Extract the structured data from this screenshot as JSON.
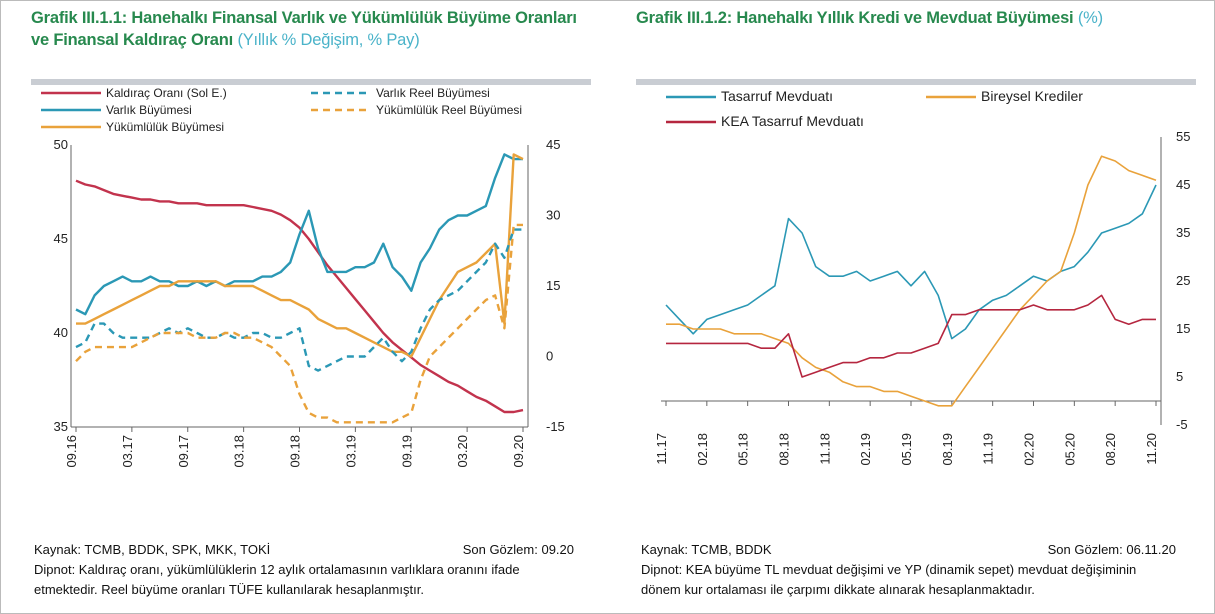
{
  "chart_data": [
    {
      "type": "line",
      "title": "Grafik III.1.1: Hanehalkı Finansal Varlık ve Yükümlülük Büyüme Oranları ve Finansal Kaldıraç Oranı",
      "subtitle": "(Yıllık % Değişim, % Pay)",
      "categories": [
        "09.16",
        null,
        null,
        null,
        null,
        null,
        "03.17",
        null,
        null,
        null,
        null,
        null,
        "09.17",
        null,
        null,
        null,
        null,
        null,
        "03.18",
        null,
        null,
        null,
        null,
        null,
        "09.18",
        null,
        null,
        null,
        null,
        null,
        "03.19",
        null,
        null,
        null,
        null,
        null,
        "09.19",
        null,
        null,
        null,
        null,
        null,
        "03.20",
        null,
        null,
        null,
        null,
        null,
        "09.20"
      ],
      "ylim": [
        35,
        50
      ],
      "yticks": [
        35,
        40,
        45,
        50
      ],
      "y2lim": [
        -15,
        45
      ],
      "y2ticks": [
        -15,
        0,
        15,
        30,
        45
      ],
      "series": [
        {
          "name": "Kaldıraç Oranı (Sol E.)",
          "color": "#c2334d",
          "dash": false,
          "values": [
            48.1,
            47.9,
            47.8,
            47.6,
            47.4,
            47.3,
            47.2,
            47.1,
            47.1,
            47.0,
            47.0,
            46.9,
            46.9,
            46.9,
            46.8,
            46.8,
            46.8,
            46.8,
            46.8,
            46.7,
            46.6,
            46.5,
            46.3,
            46.0,
            45.6,
            45.0,
            44.3,
            43.6,
            43.0,
            42.4,
            41.8,
            41.2,
            40.6,
            40.0,
            39.5,
            39.1,
            38.7,
            38.3,
            38.0,
            37.7,
            37.4,
            37.2,
            36.9,
            36.6,
            36.4,
            36.1,
            35.8,
            35.8,
            35.9
          ]
        },
        {
          "name": "Varlık Büyümesi",
          "color": "#2b98b5",
          "dash": false,
          "axis": "y2",
          "values": [
            10,
            9,
            13,
            15,
            16,
            17,
            16,
            16,
            17,
            16,
            16,
            15,
            15,
            16,
            15,
            16,
            15,
            16,
            16,
            16,
            17,
            17,
            18,
            20,
            26,
            31,
            23,
            18,
            18,
            18,
            19,
            19,
            20,
            24,
            19,
            17,
            14,
            20,
            23,
            27,
            29,
            30,
            30,
            31,
            32,
            38,
            43,
            42,
            42
          ]
        },
        {
          "name": "Yükümlülük Büyümesi",
          "color": "#e9a23b",
          "dash": false,
          "axis": "y2",
          "values": [
            7,
            7,
            8,
            9,
            10,
            11,
            12,
            13,
            14,
            15,
            15,
            16,
            16,
            16,
            16,
            16,
            15,
            15,
            15,
            15,
            14,
            13,
            12,
            12,
            11,
            10,
            8,
            7,
            6,
            6,
            5,
            4,
            3,
            2,
            1,
            1,
            0,
            4,
            8,
            12,
            15,
            18,
            19,
            20,
            22,
            24,
            7,
            43,
            42
          ]
        },
        {
          "name": "Varlık Reel Büyümesi",
          "color": "#2b98b5",
          "dash": true,
          "axis": "y2",
          "values": [
            2,
            3,
            7,
            7,
            5,
            4,
            4,
            4,
            4,
            5,
            6,
            5,
            6,
            5,
            4,
            4,
            5,
            4,
            4,
            5,
            5,
            4,
            4,
            5,
            6,
            -2,
            -3,
            -2,
            -1,
            0,
            0,
            0,
            2,
            4,
            1,
            -1,
            1,
            6,
            10,
            12,
            13,
            14,
            16,
            18,
            20,
            24,
            21,
            27,
            27
          ]
        },
        {
          "name": "Yükümlülük Reel Büyümesi",
          "color": "#e9a23b",
          "dash": true,
          "axis": "y2",
          "values": [
            -1,
            1,
            2,
            2,
            2,
            2,
            2,
            3,
            4,
            5,
            5,
            5,
            5,
            4,
            4,
            4,
            5,
            5,
            4,
            4,
            3,
            2,
            0,
            -2,
            -8,
            -12,
            -13,
            -13,
            -14,
            -14,
            -14,
            -14,
            -14,
            -14,
            -14,
            -13,
            -12,
            -5,
            0,
            2,
            4,
            6,
            8,
            10,
            12,
            13,
            6,
            28,
            28
          ]
        }
      ],
      "source": "Kaynak: TCMB, BDDK, SPK, MKK, TOKİ",
      "last_observation": "Son Gözlem: 09.20",
      "footnote": "Dipnot: Kaldıraç oranı, yükümlülüklerin 12 aylık ortalamasının varlıklara oranını ifade etmektedir. Reel büyüme oranları TÜFE kullanılarak hesaplanmıştır."
    },
    {
      "type": "line",
      "title": "Grafik III.1.2: Hanehalkı Yıllık Kredi ve Mevduat Büyümesi",
      "subtitle": "(%)",
      "categories": [
        "11.17",
        null,
        null,
        "02.18",
        null,
        null,
        "05.18",
        null,
        null,
        "08.18",
        null,
        null,
        "11.18",
        null,
        null,
        "02.19",
        null,
        null,
        "05.19",
        null,
        null,
        "08.19",
        null,
        null,
        "11.19",
        null,
        null,
        "02.20",
        null,
        null,
        "05.20",
        null,
        null,
        "08.20",
        null,
        null,
        "11.20"
      ],
      "ylim": [
        -5,
        55
      ],
      "yticks": [
        -5,
        5,
        15,
        25,
        35,
        45,
        55
      ],
      "y_axis_side": "right",
      "series": [
        {
          "name": "Tasarruf Mevduatı",
          "color": "#2b98b5",
          "dash": false,
          "values": [
            20,
            17,
            14,
            17,
            18,
            19,
            20,
            22,
            24,
            38,
            35,
            28,
            26,
            26,
            27,
            25,
            26,
            27,
            24,
            27,
            22,
            13,
            15,
            19,
            21,
            22,
            24,
            26,
            25,
            27,
            28,
            31,
            35,
            36,
            37,
            39,
            45
          ]
        },
        {
          "name": "Bireysel Krediler",
          "color": "#e9a23b",
          "dash": false,
          "values": [
            16,
            16,
            15,
            15,
            15,
            14,
            14,
            14,
            13,
            12,
            9,
            7,
            6,
            4,
            3,
            3,
            2,
            2,
            1,
            0,
            -1,
            -1,
            3,
            7,
            11,
            15,
            19,
            22,
            25,
            27,
            35,
            45,
            51,
            50,
            48,
            47,
            46
          ]
        },
        {
          "name": "KEA Tasarruf Mevduatı",
          "color": "#b5263f",
          "dash": false,
          "values": [
            12,
            12,
            12,
            12,
            12,
            12,
            12,
            11,
            11,
            14,
            5,
            6,
            7,
            8,
            8,
            9,
            9,
            10,
            10,
            11,
            12,
            18,
            18,
            19,
            19,
            19,
            19,
            20,
            19,
            19,
            19,
            20,
            22,
            17,
            16,
            17,
            17
          ]
        }
      ],
      "source": "Kaynak: TCMB, BDDK",
      "last_observation": "Son Gözlem: 06.11.20",
      "footnote": "Dipnot:  KEA büyüme TL mevduat değişimi ve YP (dinamik sepet) mevduat değişiminin dönem kur ortalaması ile çarpımı dikkate alınarak hesaplanmaktadır."
    }
  ]
}
